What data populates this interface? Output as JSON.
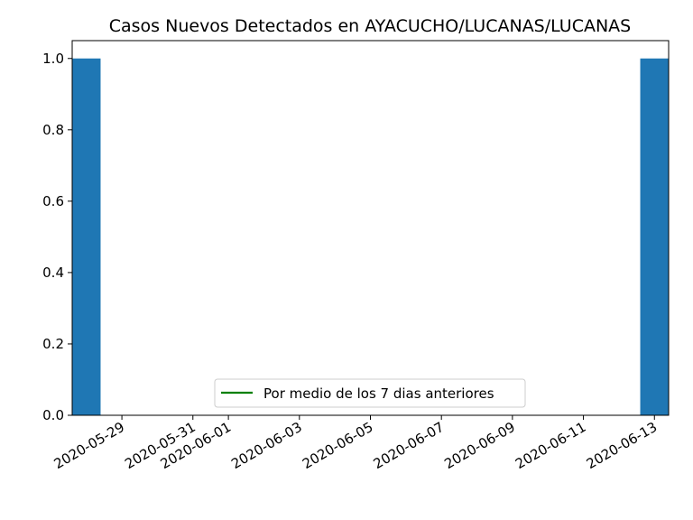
{
  "chart_data": {
    "type": "bar",
    "title": "Casos Nuevos Detectados en AYACUCHO/LUCANAS/LUCANAS",
    "xlabel": "",
    "ylabel": "",
    "x_axis_type": "date",
    "xlim": [
      "2020-05-28",
      "2020-06-13"
    ],
    "ylim": [
      0,
      1.05
    ],
    "x_ticks": [
      "2020-05-29",
      "2020-05-31",
      "2020-06-01",
      "2020-06-03",
      "2020-06-05",
      "2020-06-07",
      "2020-06-09",
      "2020-06-11",
      "2020-06-13"
    ],
    "y_ticks": [
      "0.0",
      "0.2",
      "0.4",
      "0.6",
      "0.8",
      "1.0"
    ],
    "bar_color": "#1f77b4",
    "series": [
      {
        "x": [
          "2020-05-28",
          "2020-06-13"
        ],
        "values": [
          1,
          1
        ]
      }
    ],
    "line_series": {
      "name": "Por medio de los 7 dias anteriores",
      "color": "#008000",
      "values": []
    },
    "legend": {
      "position": "lower-center",
      "entries": [
        "Por medio de los 7 dias anteriores"
      ]
    },
    "grid": false
  }
}
